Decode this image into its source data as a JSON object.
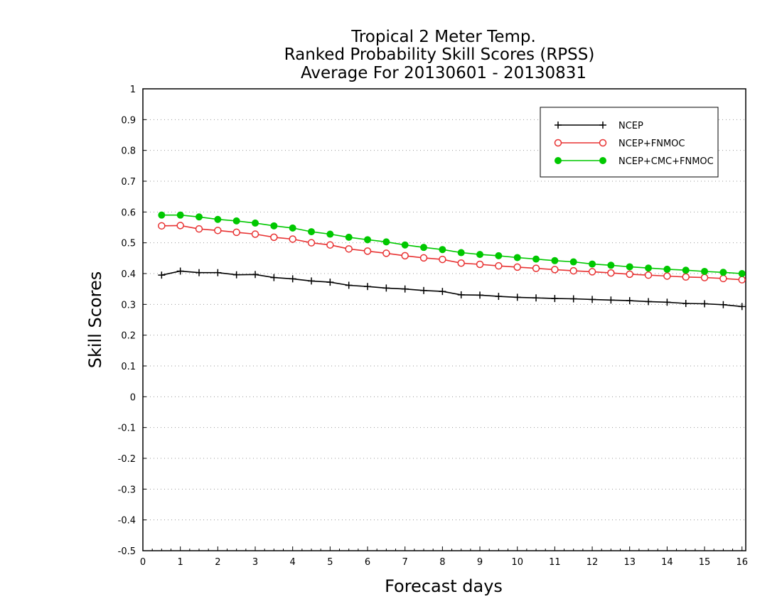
{
  "chart_data": {
    "type": "line",
    "title_lines": [
      "Tropical 2 Meter Temp.",
      "Ranked Probability Skill Scores (RPSS)",
      "Average For 20130601 - 20130831"
    ],
    "xlabel": "Forecast days",
    "ylabel": "Skill Scores",
    "xlim": [
      0,
      16.1
    ],
    "ylim": [
      -0.5,
      1
    ],
    "x_ticks": [
      0,
      1,
      2,
      3,
      4,
      5,
      6,
      7,
      8,
      9,
      10,
      11,
      12,
      13,
      14,
      15,
      16
    ],
    "x_tick_labels": [
      "0",
      "1",
      "2",
      "3",
      "4",
      "5",
      "6",
      "7",
      "8",
      "9",
      "10",
      "11",
      "12",
      "13",
      "14",
      "15",
      "16"
    ],
    "y_ticks": [
      -0.5,
      -0.4,
      -0.3,
      -0.2,
      -0.1,
      0,
      0.1,
      0.2,
      0.3,
      0.4,
      0.5,
      0.6,
      0.7,
      0.8,
      0.9,
      1
    ],
    "y_tick_labels": [
      "-0.5",
      "-0.4",
      "-0.3",
      "-0.2",
      "-0.1",
      "0",
      "0.1",
      "0.2",
      "0.3",
      "0.4",
      "0.5",
      "0.6",
      "0.7",
      "0.8",
      "0.9",
      "1"
    ],
    "grid": "horizontal dotted",
    "legend_position": "top-right",
    "x": [
      0.5,
      1,
      1.5,
      2,
      2.5,
      3,
      3.5,
      4,
      4.5,
      5,
      5.5,
      6,
      6.5,
      7,
      7.5,
      8,
      8.5,
      9,
      9.5,
      10,
      10.5,
      11,
      11.5,
      12,
      12.5,
      13,
      13.5,
      14,
      14.5,
      15,
      15.5,
      16
    ],
    "series": [
      {
        "name": "NCEP",
        "color": "#000000",
        "marker": "plus",
        "values": [
          0.395,
          0.408,
          0.403,
          0.403,
          0.396,
          0.397,
          0.387,
          0.383,
          0.376,
          0.372,
          0.362,
          0.358,
          0.353,
          0.35,
          0.345,
          0.342,
          0.331,
          0.33,
          0.326,
          0.323,
          0.321,
          0.319,
          0.318,
          0.316,
          0.314,
          0.312,
          0.309,
          0.307,
          0.303,
          0.302,
          0.299,
          0.293
        ]
      },
      {
        "name": "NCEP+FNMOC",
        "color": "#e83232",
        "marker": "open-circle",
        "values": [
          0.555,
          0.556,
          0.545,
          0.54,
          0.534,
          0.528,
          0.518,
          0.512,
          0.5,
          0.493,
          0.48,
          0.473,
          0.466,
          0.458,
          0.451,
          0.446,
          0.434,
          0.43,
          0.425,
          0.421,
          0.417,
          0.413,
          0.409,
          0.406,
          0.402,
          0.398,
          0.395,
          0.392,
          0.389,
          0.387,
          0.384,
          0.38
        ]
      },
      {
        "name": "NCEP+CMC+FNMOC",
        "color": "#00c800",
        "marker": "filled-circle",
        "values": [
          0.59,
          0.59,
          0.584,
          0.576,
          0.571,
          0.564,
          0.555,
          0.548,
          0.536,
          0.528,
          0.518,
          0.51,
          0.503,
          0.493,
          0.485,
          0.478,
          0.468,
          0.462,
          0.458,
          0.452,
          0.447,
          0.442,
          0.438,
          0.431,
          0.427,
          0.422,
          0.418,
          0.414,
          0.411,
          0.407,
          0.404,
          0.4
        ]
      }
    ]
  }
}
